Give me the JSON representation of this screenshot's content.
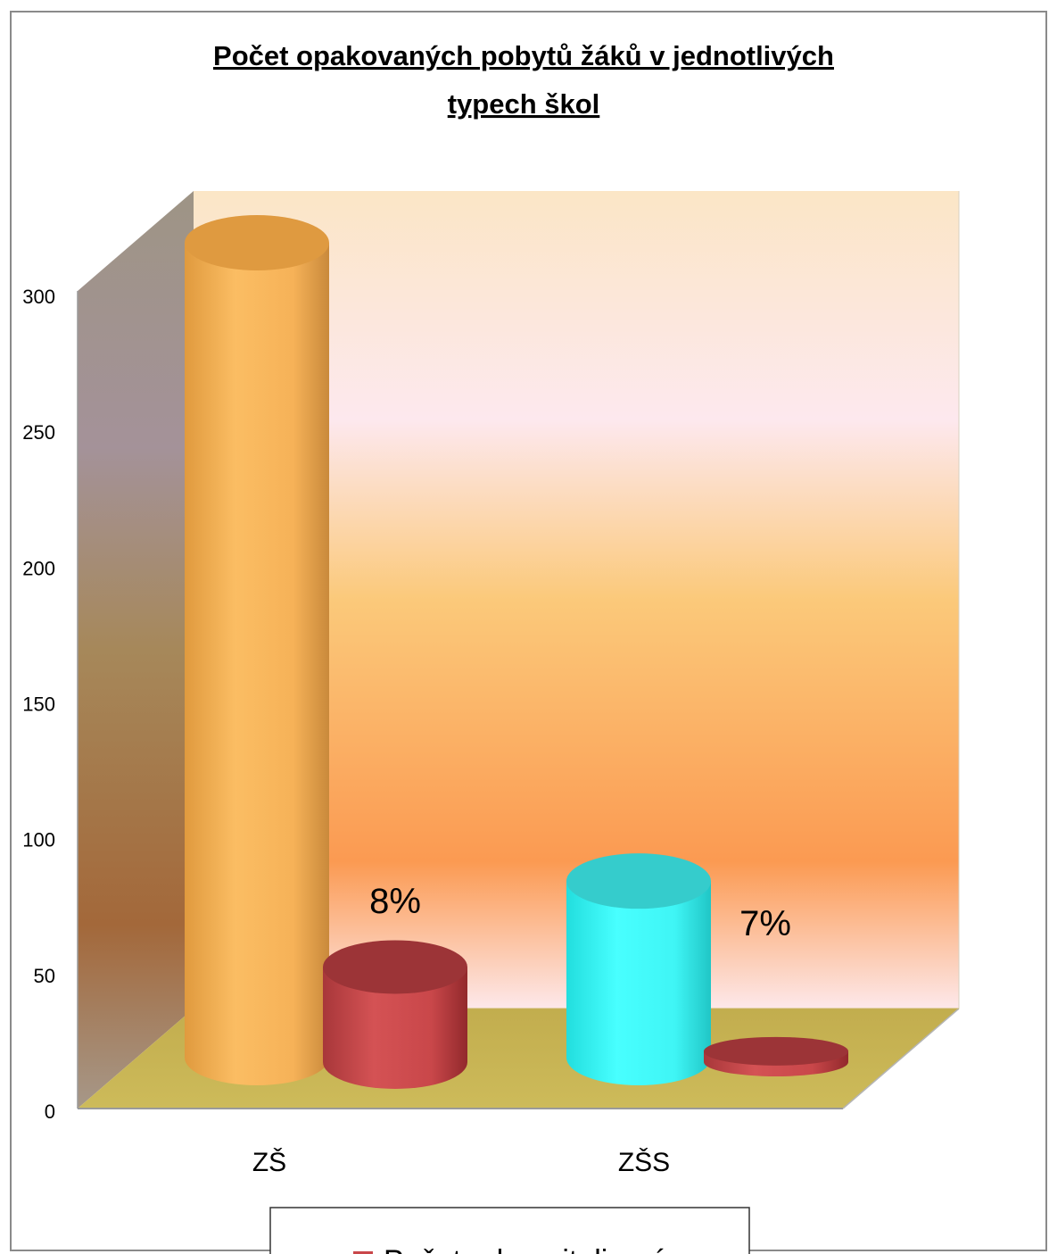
{
  "chart_data": {
    "type": "bar",
    "title_lines": [
      "Počet opakovaných pobytů žáků v jednotlivých",
      "typech škol"
    ],
    "categories": [
      "ZŠ",
      "ZŠS"
    ],
    "series": [
      {
        "values": [
          300,
          65
        ],
        "colors": [
          "#f9b85a",
          "#3ff0f0"
        ]
      },
      {
        "name": "Počet rehospitalizací",
        "values": [
          35,
          4
        ],
        "color": "#c9474a"
      }
    ],
    "data_labels": [
      "8%",
      "7%"
    ],
    "y_ticks": [
      0,
      50,
      100,
      150,
      200,
      250,
      300
    ],
    "ylim": [
      0,
      300
    ],
    "legend_position": "bottom"
  }
}
